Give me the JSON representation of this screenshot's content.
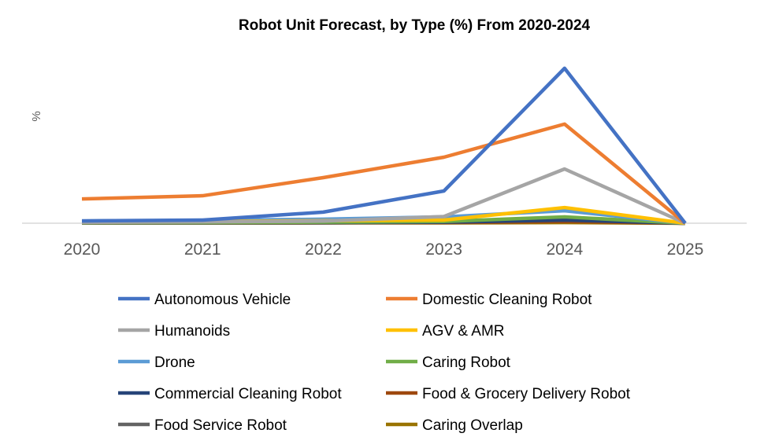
{
  "chart_data": {
    "type": "line",
    "title": "Robot Unit Forecast, by Type (%) From 2020-2024",
    "xlabel": "",
    "ylabel": "%",
    "categories": [
      "2020",
      "2021",
      "2022",
      "2023",
      "2024",
      "2025"
    ],
    "ylim": [
      0,
      100
    ],
    "grid": false,
    "legend_position": "bottom",
    "series": [
      {
        "name": "Autonomous Vehicle",
        "color": "#4472C4",
        "values": [
          1.3,
          1.8,
          6.3,
          18.3,
          88,
          0
        ]
      },
      {
        "name": "Domestic Cleaning Robot",
        "color": "#ED7D31",
        "values": [
          13.8,
          15.6,
          25.9,
          37.5,
          56.3,
          0
        ]
      },
      {
        "name": "Humanoids",
        "color": "#A5A5A5",
        "values": [
          0.5,
          0.8,
          1.2,
          3.8,
          30.8,
          0
        ]
      },
      {
        "name": "AGV & AMR",
        "color": "#FFC000",
        "values": [
          0.8,
          1.0,
          1.4,
          1.8,
          8.9,
          0
        ]
      },
      {
        "name": "Drone",
        "color": "#5B9BD5",
        "values": [
          1.3,
          1.5,
          2.3,
          3.6,
          7.1,
          0
        ]
      },
      {
        "name": "Caring Robot",
        "color": "#70AD47",
        "values": [
          0.3,
          0.4,
          0.6,
          1.0,
          3.6,
          0
        ]
      },
      {
        "name": "Commercial Cleaning Robot",
        "color": "#264478",
        "values": [
          0.2,
          0.3,
          0.4,
          0.6,
          1.8,
          0
        ]
      },
      {
        "name": "Food & Grocery Delivery Robot",
        "color": "#9E480E",
        "values": [
          0.1,
          0.2,
          0.3,
          0.4,
          1.0,
          0
        ]
      },
      {
        "name": "Food Service Robot",
        "color": "#636363",
        "values": [
          0.1,
          0.2,
          0.3,
          0.5,
          1.5,
          0
        ]
      },
      {
        "name": "Caring Overlap",
        "color": "#997300",
        "values": [
          0.1,
          0.1,
          0.2,
          0.2,
          0.4,
          0
        ]
      }
    ]
  }
}
